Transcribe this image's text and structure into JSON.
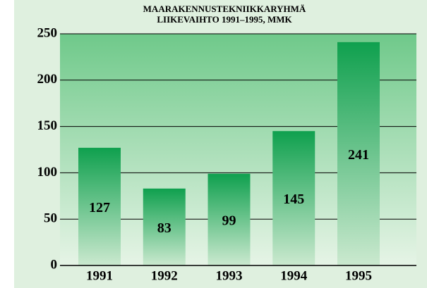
{
  "chart_data": {
    "type": "bar",
    "title": "MAARAKENNUSTEKNIIKKARYHMÄ",
    "subtitle": "LIIKEVAIHTO 1991–1995, MMK",
    "categories": [
      "1991",
      "1992",
      "1993",
      "1994",
      "1995"
    ],
    "values": [
      127,
      83,
      99,
      145,
      241
    ],
    "color": "#0fa04e",
    "ylim": [
      0,
      250
    ],
    "yticks": [
      0,
      50,
      100,
      150,
      200,
      250
    ],
    "grid": true
  }
}
